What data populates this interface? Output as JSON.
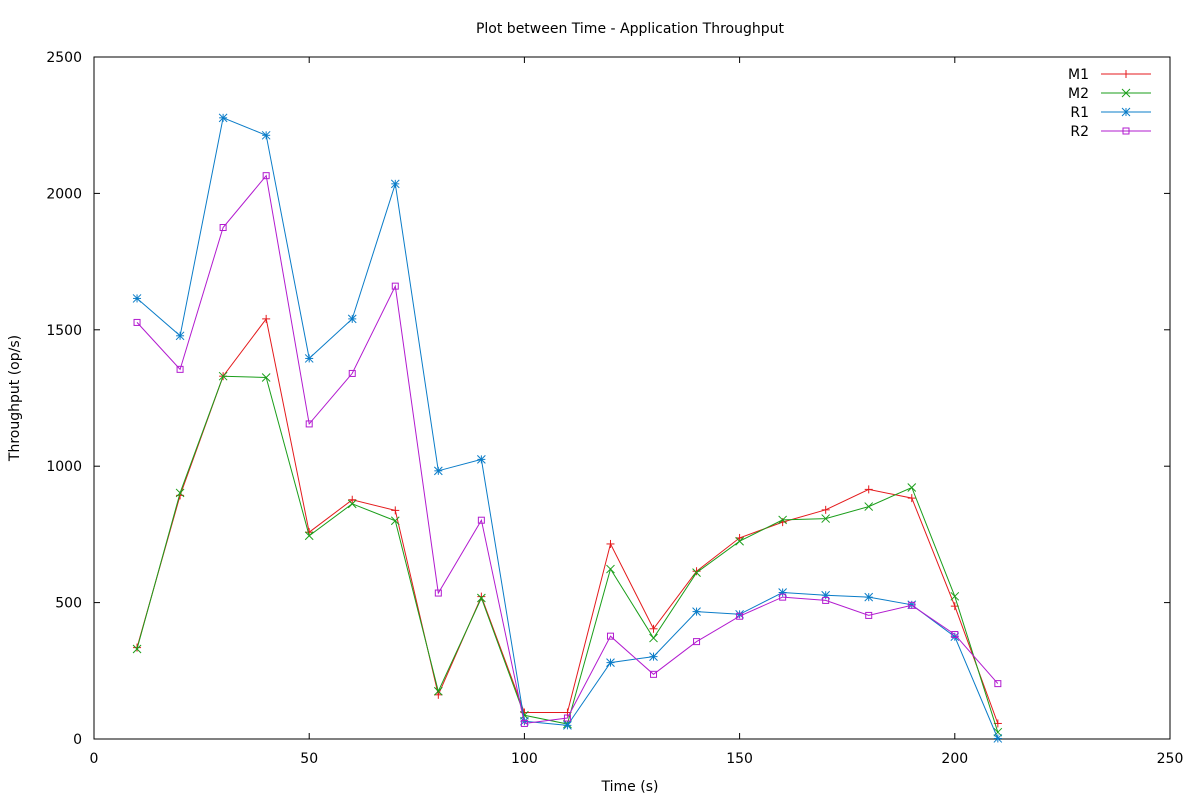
{
  "chart_data": {
    "type": "line",
    "title": "Plot between Time - Application Throughput",
    "xlabel": "Time (s)",
    "ylabel": "Throughput (op/s)",
    "xlim": [
      0,
      250
    ],
    "ylim": [
      0,
      2500
    ],
    "xticks": [
      0,
      50,
      100,
      150,
      200,
      250
    ],
    "yticks": [
      0,
      500,
      1000,
      1500,
      2000,
      2500
    ],
    "xtick_labels": [
      "0",
      "50",
      "100",
      "150",
      "200",
      "250"
    ],
    "ytick_labels": [
      "0",
      "500",
      "1000",
      "1500",
      "2000",
      "2500"
    ],
    "grid": false,
    "legend_position": "top-right",
    "x": [
      10,
      20,
      30,
      40,
      50,
      60,
      70,
      80,
      90,
      100,
      110,
      120,
      130,
      140,
      150,
      160,
      170,
      180,
      190,
      200,
      210
    ],
    "series": [
      {
        "name": "M1",
        "color": "#e41a1c",
        "marker": "plus",
        "values": [
          335,
          893,
          1330,
          1540,
          758,
          877,
          838,
          162,
          522,
          97,
          97,
          715,
          404,
          615,
          737,
          795,
          840,
          915,
          883,
          487,
          57
        ]
      },
      {
        "name": "M2",
        "color": "#1a9e1a",
        "marker": "cross",
        "values": [
          330,
          902,
          1330,
          1325,
          745,
          862,
          800,
          175,
          517,
          87,
          55,
          623,
          370,
          610,
          725,
          803,
          808,
          852,
          922,
          523,
          25
        ]
      },
      {
        "name": "R1",
        "color": "#0a7cc8",
        "marker": "asterisk",
        "values": [
          1615,
          1478,
          2277,
          2213,
          1395,
          1540,
          2035,
          983,
          1025,
          65,
          50,
          280,
          302,
          467,
          457,
          537,
          527,
          520,
          492,
          375,
          2
        ]
      },
      {
        "name": "R2",
        "color": "#b21bcf",
        "marker": "square",
        "values": [
          1527,
          1355,
          1875,
          2065,
          1155,
          1340,
          1660,
          535,
          802,
          57,
          77,
          377,
          237,
          357,
          450,
          520,
          508,
          453,
          490,
          383,
          203
        ]
      }
    ]
  }
}
